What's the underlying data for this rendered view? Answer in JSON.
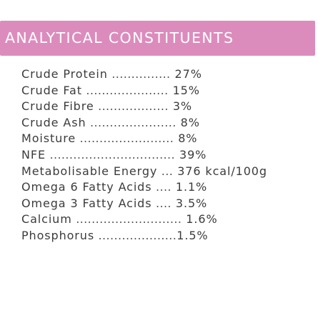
{
  "header": {
    "title": "ANALYTICAL CONSTITUENTS"
  },
  "constituents": [
    {
      "label": "Crude Protein",
      "leader": " ...............",
      "value": " 27%"
    },
    {
      "label": "Crude Fat",
      "leader": " .....................",
      "value": " 15%"
    },
    {
      "label": "Crude Fibre",
      "leader": " ..................",
      "value": " 3%"
    },
    {
      "label": "Crude Ash",
      "leader": " ......................",
      "value": " 8%"
    },
    {
      "label": "Moisture",
      "leader": " ........................",
      "value": " 8%"
    },
    {
      "label": "NFE",
      "leader": " ................................",
      "value": " 39%"
    },
    {
      "label": "Metabolisable Energy",
      "leader": " ...",
      "value": " 376 kcal/100g"
    },
    {
      "label": "Omega 6 Fatty Acids",
      "leader": " ....",
      "value": " 1.1%"
    },
    {
      "label": "Omega 3 Fatty Acids",
      "leader": " ....",
      "value": " 3.5%"
    },
    {
      "label": "Calcium",
      "leader": " ...........................",
      "value": " 1.6%"
    },
    {
      "label": "Phosphorus",
      "leader": " ....................",
      "value": "1.5%"
    }
  ],
  "colors": {
    "header_bg": "#dc8cbc",
    "header_text": "#ffffff",
    "body_text": "#3c3c3c"
  }
}
